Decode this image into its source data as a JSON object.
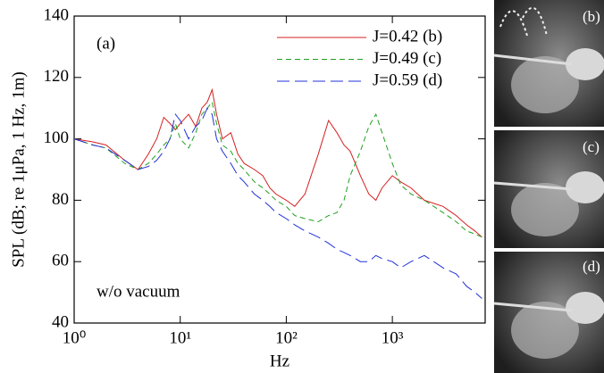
{
  "chart_data": {
    "type": "line",
    "xscale": "log",
    "xlabel": "Hz",
    "ylabel": "SPL (dB; re 1μPa, 1 Hz, 1m)",
    "annotations": [
      "(a)",
      "w/o vacuum"
    ],
    "legend": "upper right",
    "x": [
      1,
      1.5,
      2,
      3,
      4,
      5,
      6,
      7,
      8,
      9,
      10,
      12,
      14,
      16,
      18,
      20,
      22,
      25,
      30,
      35,
      40,
      50,
      60,
      70,
      80,
      100,
      120,
      150,
      200,
      250,
      300,
      350,
      400,
      500,
      600,
      700,
      800,
      1000,
      1200,
      1500,
      2000,
      3000,
      4000,
      5000,
      6000,
      7000
    ],
    "series": [
      {
        "name": "J=0.42 (b)",
        "color": "#d42020",
        "dash": "none",
        "values": [
          100,
          99,
          98,
          93,
          90,
          95,
          100,
          107,
          105,
          103,
          105,
          108,
          104,
          110,
          112,
          116,
          108,
          100,
          102,
          95,
          92,
          90,
          88,
          84,
          82,
          80,
          78,
          82,
          95,
          106,
          102,
          98,
          96,
          88,
          82,
          80,
          84,
          88,
          86,
          84,
          80,
          78,
          75,
          72,
          70,
          68
        ]
      },
      {
        "name": "J=0.49 (c)",
        "color": "#20a020",
        "dash": "6 4",
        "values": [
          100,
          98,
          97,
          92,
          90,
          92,
          95,
          98,
          100,
          105,
          100,
          97,
          102,
          108,
          110,
          112,
          105,
          98,
          96,
          92,
          90,
          86,
          84,
          82,
          80,
          78,
          75,
          74,
          73,
          75,
          76,
          80,
          88,
          96,
          104,
          108,
          102,
          92,
          85,
          82,
          80,
          76,
          73,
          70,
          69,
          68
        ]
      },
      {
        "name": "J=0.59 (d)",
        "color": "#2030d8",
        "dash": "14 6",
        "values": [
          100,
          98,
          97,
          93,
          90,
          91,
          93,
          96,
          100,
          108,
          106,
          100,
          104,
          106,
          110,
          108,
          100,
          96,
          92,
          88,
          86,
          82,
          80,
          78,
          76,
          74,
          72,
          70,
          68,
          66,
          64,
          63,
          62,
          60,
          60,
          62,
          61,
          60,
          58,
          60,
          62,
          58,
          56,
          52,
          50,
          48
        ]
      }
    ],
    "xlim": [
      1,
      7500
    ],
    "ylim": [
      40,
      140
    ],
    "xticks": [
      {
        "value": 1,
        "label": "10⁰"
      },
      {
        "value": 10,
        "label": "10¹"
      },
      {
        "value": 100,
        "label": "10²"
      },
      {
        "value": 1000,
        "label": "10³"
      }
    ],
    "yticks": [
      40,
      60,
      80,
      100,
      120,
      140
    ]
  },
  "photos": {
    "labels": [
      "(b)",
      "(c)",
      "(d)"
    ]
  }
}
